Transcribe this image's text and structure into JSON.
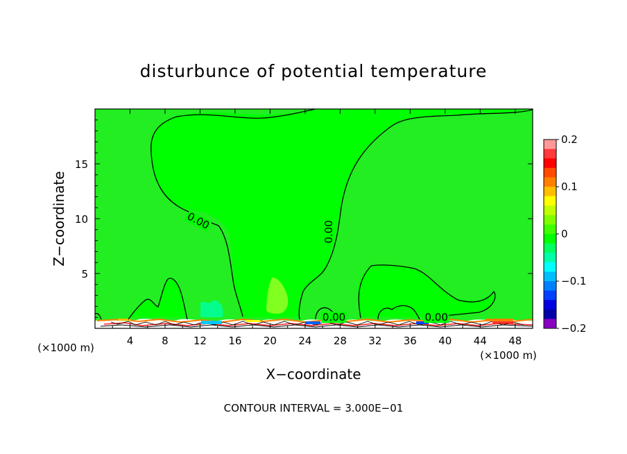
{
  "chart_data": {
    "type": "contour",
    "title": "disturbunce of potential temperature",
    "xlabel": "X−coordinate",
    "ylabel": "Z−coordinate",
    "x_unit_left": "(×1000 m)",
    "x_unit_right": "(×1000 m)",
    "xlim": [
      0,
      50
    ],
    "ylim": [
      0,
      20
    ],
    "x_ticks": [
      4,
      8,
      12,
      16,
      20,
      24,
      28,
      32,
      36,
      40,
      44,
      48
    ],
    "y_ticks": [
      5,
      10,
      15
    ],
    "contour_interval_text": "CONTOUR INTERVAL = 3.000E−01",
    "contour_labels": [
      {
        "text": "0.00",
        "x": 11.8,
        "z": 9.8
      },
      {
        "text": "0.00",
        "x": 26.7,
        "z": 8.8
      },
      {
        "text": "0.00",
        "x": 27.3,
        "z": 1.0
      },
      {
        "text": "0.00",
        "x": 39.0,
        "z": 1.0
      }
    ],
    "colorbar": {
      "min": -0.2,
      "max": 0.2,
      "tick_values": [
        0.2,
        0.1,
        0,
        -0.1,
        -0.2
      ],
      "tick_labels": [
        "0.2",
        "0.1",
        "0",
        "−0.1",
        "−0.2"
      ],
      "colors": [
        "#ff9999",
        "#ff3b3b",
        "#ff0000",
        "#ff4a00",
        "#ff8000",
        "#ffbf00",
        "#ffff00",
        "#bfff00",
        "#7fff00",
        "#3fff00",
        "#00ff00",
        "#00ff60",
        "#00ffa8",
        "#00ffff",
        "#00bfff",
        "#0080ff",
        "#0040ff",
        "#0000e0",
        "#0000a8",
        "#8a00c0"
      ]
    },
    "field_colors": {
      "background": "#22ee22",
      "positive_region": "#00ff00",
      "warm_patch": "#80ff20",
      "cool_patch": "#00ffa0"
    }
  }
}
